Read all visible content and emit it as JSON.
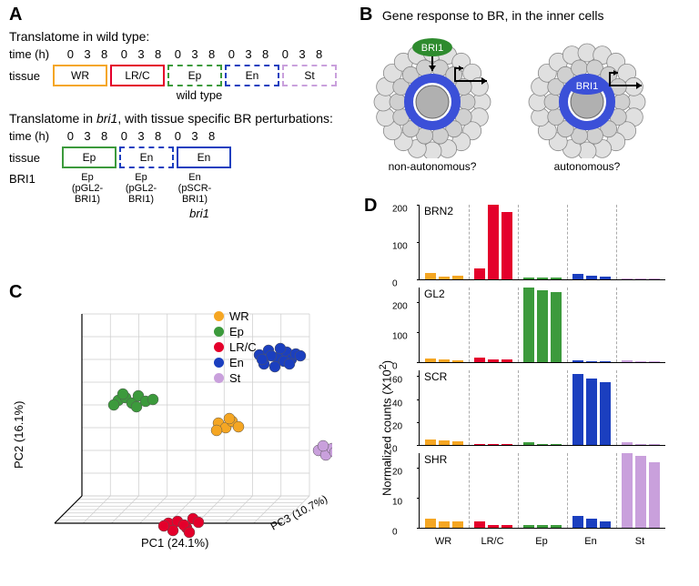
{
  "colors": {
    "WR": "#f5a623",
    "LRC": "#e4002b",
    "Ep": "#3c9a3c",
    "En": "#1b3fbf",
    "St": "#c9a0dc",
    "grid": "#cccccc",
    "black": "#000000",
    "inner_blue": "#3b50d8",
    "bri_green": "#2e8b2e"
  },
  "panelA": {
    "label": "A",
    "title_wt": "Translatome in wild type:",
    "title_bri": "Translatome in bri1, with tissue specific BR perturbations:",
    "row_time": "time (h)",
    "row_tissue": "tissue",
    "row_bri": "BRI1",
    "time_points": [
      "0",
      "3",
      "8"
    ],
    "tissues_wt": [
      {
        "abbr": "WR",
        "color": "#f5a623",
        "dashed": false
      },
      {
        "abbr": "LR/C",
        "color": "#e4002b",
        "dashed": false
      },
      {
        "abbr": "Ep",
        "color": "#3c9a3c",
        "dashed": true
      },
      {
        "abbr": "En",
        "color": "#1b3fbf",
        "dashed": true
      },
      {
        "abbr": "St",
        "color": "#c9a0dc",
        "dashed": true
      }
    ],
    "wt_caption": "wild type",
    "tissues_bri": [
      {
        "abbr": "Ep",
        "color": "#3c9a3c",
        "dashed": false
      },
      {
        "abbr": "En",
        "color": "#1b3fbf",
        "dashed": true
      },
      {
        "abbr": "En",
        "color": "#1b3fbf",
        "dashed": false
      }
    ],
    "bri_labels": [
      {
        "t": "Ep",
        "c": "(pGL2-BRI1)"
      },
      {
        "t": "Ep",
        "c": "(pGL2-BRI1)"
      },
      {
        "t": "En",
        "c": "(pSCR-BRI1)"
      }
    ],
    "bri_caption": "bri1"
  },
  "panelB": {
    "label": "B",
    "title": "Gene response to BR, in the inner cells",
    "left_caption": "non-autonomous?",
    "right_caption": "autonomous?",
    "bri_label": "BRI1"
  },
  "panelC": {
    "label": "C",
    "axes": {
      "pc1": "PC1 (24.1%)",
      "pc2": "PC2 (16.1%)",
      "pc3": "PC3 (10.7%)"
    },
    "legend": [
      {
        "name": "WR",
        "color": "#f5a623"
      },
      {
        "name": "Ep",
        "color": "#3c9a3c"
      },
      {
        "name": "LR/C",
        "color": "#e4002b"
      },
      {
        "name": "En",
        "color": "#1b3fbf"
      },
      {
        "name": "St",
        "color": "#c9a0dc"
      }
    ],
    "points": {
      "WR": [
        [
          150,
          120
        ],
        [
          158,
          125
        ],
        [
          165,
          118
        ],
        [
          172,
          124
        ],
        [
          148,
          128
        ],
        [
          162,
          115
        ]
      ],
      "Ep": [
        [
          40,
          95
        ],
        [
          48,
          92
        ],
        [
          55,
          98
        ],
        [
          62,
          90
        ],
        [
          70,
          96
        ],
        [
          78,
          94
        ],
        [
          35,
          100
        ],
        [
          45,
          88
        ],
        [
          60,
          102
        ]
      ],
      "LRC": [
        [
          95,
          230
        ],
        [
          105,
          228
        ],
        [
          115,
          235
        ],
        [
          122,
          225
        ],
        [
          100,
          238
        ],
        [
          112,
          232
        ],
        [
          128,
          229
        ],
        [
          90,
          233
        ],
        [
          118,
          240
        ]
      ],
      "En": [
        [
          195,
          45
        ],
        [
          205,
          40
        ],
        [
          215,
          48
        ],
        [
          225,
          42
        ],
        [
          200,
          55
        ],
        [
          218,
          38
        ],
        [
          230,
          50
        ],
        [
          208,
          46
        ],
        [
          222,
          52
        ],
        [
          235,
          44
        ],
        [
          198,
          50
        ],
        [
          212,
          58
        ],
        [
          240,
          46
        ],
        [
          228,
          55
        ]
      ],
      "St": [
        [
          260,
          150
        ],
        [
          268,
          155
        ],
        [
          275,
          148
        ],
        [
          282,
          158
        ],
        [
          265,
          145
        ],
        [
          278,
          152
        ]
      ]
    }
  },
  "panelD": {
    "label": "D",
    "y_title": "Normalized counts (X10²)",
    "categories": [
      "WR",
      "LR/C",
      "Ep",
      "En",
      "St"
    ],
    "cat_colors": [
      "#f5a623",
      "#e4002b",
      "#3c9a3c",
      "#1b3fbf",
      "#c9a0dc"
    ],
    "charts": [
      {
        "gene": "BRN2",
        "ymax": 200,
        "ystep": 100,
        "triplets": [
          [
            18,
            8,
            10
          ],
          [
            30,
            200,
            180
          ],
          [
            6,
            4,
            5
          ],
          [
            15,
            10,
            8
          ],
          [
            2,
            2,
            2
          ]
        ]
      },
      {
        "gene": "GL2",
        "ymax": 250,
        "ystep": 100,
        "triplets_real": [
          [
            12,
            8,
            6
          ],
          [
            14,
            10,
            8
          ],
          [
            250,
            240,
            235
          ],
          [
            6,
            4,
            4
          ],
          [
            5,
            4,
            3
          ]
        ]
      },
      {
        "gene": "SCR",
        "ymax": 65,
        "ystep": 20,
        "triplets_real": [
          [
            5,
            4,
            3
          ],
          [
            1,
            1,
            1
          ],
          [
            2,
            1,
            1
          ],
          [
            62,
            58,
            55
          ],
          [
            2,
            1,
            1
          ]
        ]
      },
      {
        "gene": "SHR",
        "ymax": 25,
        "ystep": 10,
        "triplets_real": [
          [
            3,
            2,
            2
          ],
          [
            2,
            1,
            1
          ],
          [
            1,
            1,
            1
          ],
          [
            4,
            3,
            2
          ],
          [
            25,
            24,
            22
          ]
        ]
      }
    ]
  }
}
